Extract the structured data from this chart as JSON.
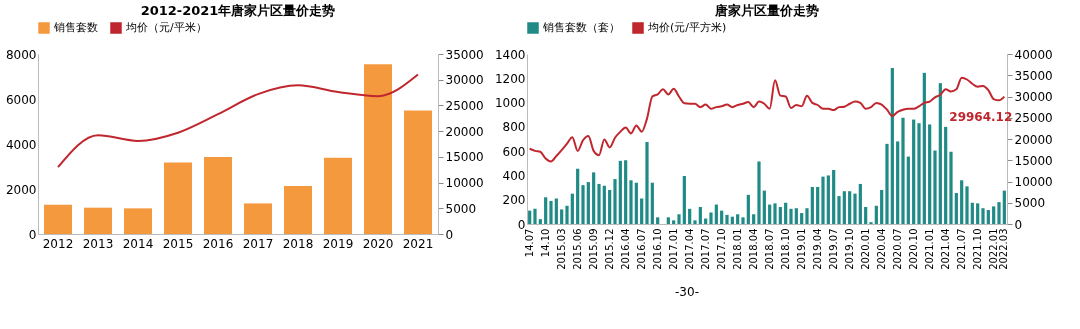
{
  "chart_data": [
    {
      "type": "bar",
      "title": "2012-2021年唐家片区量价走势",
      "categories": [
        "2012",
        "2013",
        "2014",
        "2015",
        "2016",
        "2017",
        "2018",
        "2019",
        "2020",
        "2021"
      ],
      "series": [
        {
          "name": "销售套数",
          "type": "bar",
          "color": "#f5993f",
          "values": [
            1300,
            1170,
            1140,
            3180,
            3420,
            1360,
            2130,
            3390,
            7550,
            5490
          ]
        },
        {
          "name": "均价（元/平米）",
          "type": "line",
          "axis": "y2",
          "color": "#c0262d",
          "values": [
            13000,
            19200,
            18100,
            19700,
            23300,
            27200,
            28900,
            27600,
            26800,
            31000
          ]
        }
      ],
      "ylim": [
        0,
        8000
      ],
      "yticks": [
        0,
        2000,
        4000,
        6000,
        8000
      ],
      "y2lim": [
        0,
        35000
      ],
      "y2ticks": [
        0,
        5000,
        10000,
        15000,
        20000,
        25000,
        30000,
        35000
      ],
      "legend": "top",
      "grid": false
    },
    {
      "type": "bar",
      "title": "唐家片区量价走势",
      "categories": [
        "14.07",
        null,
        null,
        "14.10",
        null,
        null,
        "2015.03",
        null,
        null,
        "2015.06",
        null,
        null,
        "2015.09",
        null,
        null,
        "2015.12",
        null,
        null,
        "2016.04",
        null,
        null,
        "2016.07",
        null,
        null,
        "2016.10",
        null,
        null,
        "2017.01",
        null,
        null,
        "2017.04",
        null,
        null,
        "2017.07",
        null,
        null,
        "2017.10",
        null,
        null,
        "2018.01",
        null,
        null,
        "2018.04",
        null,
        null,
        "2018.07",
        null,
        null,
        "2018.10",
        null,
        null,
        "2019.01",
        null,
        null,
        "2019.04",
        null,
        null,
        "2019.07",
        null,
        null,
        "2019.10",
        null,
        null,
        "2020.01",
        null,
        null,
        "2020.04",
        null,
        null,
        "2020.07",
        null,
        null,
        "2020.10",
        null,
        null,
        "2021.01",
        null,
        null,
        "2021.04",
        null,
        null,
        "2021.07",
        null,
        null,
        "2021.10",
        null,
        null,
        "2022.01",
        null,
        "2022.03"
      ],
      "series": [
        {
          "name": "销售套数（套）",
          "color": "#1f8a86",
          "values": [
            110,
            125,
            40,
            220,
            190,
            210,
            120,
            150,
            250,
            455,
            320,
            345,
            425,
            330,
            315,
            280,
            370,
            520,
            525,
            360,
            340,
            210,
            675,
            340,
            55,
            null,
            55,
            30,
            80,
            395,
            125,
            30,
            140,
            45,
            95,
            160,
            110,
            75,
            60,
            80,
            55,
            240,
            80,
            515,
            275,
            160,
            170,
            140,
            175,
            125,
            130,
            90,
            130,
            305,
            305,
            390,
            400,
            445,
            230,
            270,
            270,
            250,
            330,
            140,
            15,
            150,
            280,
            660,
            1285,
            680,
            875,
            555,
            860,
            830,
            1245,
            820,
            605,
            1160,
            800,
            595,
            255,
            360,
            310,
            175,
            170,
            130,
            115,
            145,
            180,
            275
          ]
        },
        {
          "name": "均价(元/平方米)",
          "type": "line",
          "axis": "y2",
          "color": "#c0262d",
          "values": [
            17700,
            17200,
            17000,
            15400,
            14700,
            16000,
            17400,
            18900,
            20400,
            17200,
            19700,
            20700,
            17200,
            16200,
            19900,
            18000,
            20300,
            21700,
            22700,
            21300,
            23200,
            21700,
            24800,
            30000,
            30500,
            31700,
            30500,
            31800,
            30000,
            28400,
            28300,
            28300,
            27500,
            28100,
            27100,
            27500,
            27700,
            28100,
            27500,
            28000,
            28300,
            28700,
            27500,
            28800,
            28300,
            27100,
            33800,
            30200,
            30000,
            27300,
            28000,
            27700,
            30200,
            28500,
            28000,
            27100,
            27100,
            26800,
            27500,
            27600,
            28300,
            28800,
            28500,
            27100,
            27500,
            28500,
            28100,
            26900,
            25400,
            26400,
            26900,
            27100,
            27100,
            27700,
            28500,
            28800,
            29800,
            30400,
            31700,
            31200,
            31700,
            34400,
            34000,
            33000,
            32300,
            32500,
            31500,
            29400,
            29100,
            29964.12
          ],
          "value_labels": [
            null,
            null,
            null,
            null,
            null,
            null,
            null,
            null,
            null,
            null,
            null,
            null,
            null,
            null,
            null,
            null,
            null,
            null,
            null,
            null,
            null,
            null,
            null,
            null,
            null,
            null,
            null,
            null,
            null,
            null,
            null,
            null,
            null,
            null,
            null,
            null,
            null,
            null,
            null,
            null,
            null,
            null,
            null,
            null,
            null,
            null,
            null,
            null,
            null,
            null,
            null,
            null,
            null,
            null,
            null,
            null,
            null,
            null,
            null,
            null,
            null,
            null,
            null,
            null,
            null,
            null,
            null,
            null,
            null,
            null,
            null,
            null,
            null,
            null,
            null,
            null,
            null,
            null,
            null,
            null,
            null,
            null,
            null,
            null,
            null,
            null,
            null,
            null,
            null,
            "29964.12"
          ]
        }
      ],
      "ylim": [
        0,
        1400
      ],
      "yticks": [
        0,
        200,
        400,
        600,
        800,
        1000,
        1200,
        1400
      ],
      "y2lim": [
        0,
        40000
      ],
      "y2ticks": [
        0,
        5000,
        10000,
        15000,
        20000,
        25000,
        30000,
        35000,
        40000
      ],
      "legend": "top",
      "grid": false,
      "annotations": [
        "-30-"
      ]
    }
  ]
}
